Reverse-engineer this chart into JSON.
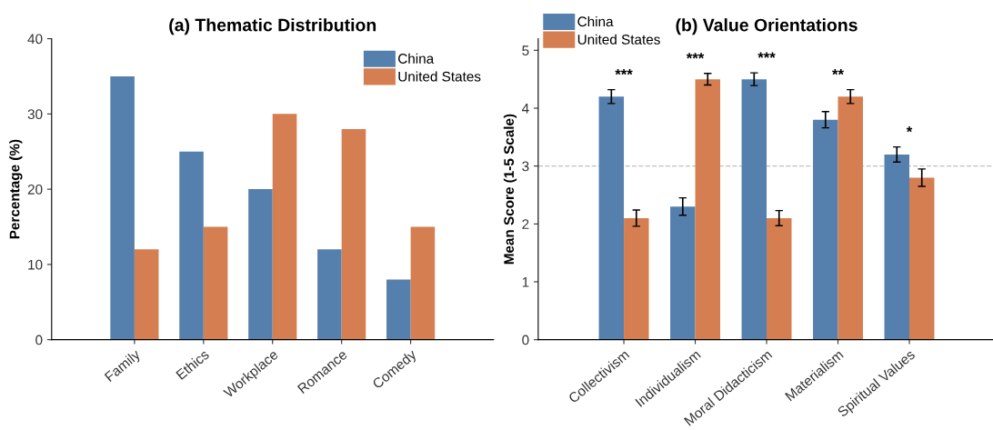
{
  "chart_data": [
    {
      "type": "bar",
      "title": "(a) Thematic Distribution",
      "ylabel": "Percentage (%)",
      "categories": [
        "Family",
        "Ethics",
        "Workplace",
        "Romance",
        "Comedy"
      ],
      "series": [
        {
          "name": "China",
          "color": "#5580ad",
          "values": [
            35,
            25,
            20,
            12,
            8
          ]
        },
        {
          "name": "United States",
          "color": "#d47e51",
          "values": [
            12,
            15,
            30,
            28,
            15
          ]
        }
      ],
      "ylim": [
        0,
        40
      ],
      "yticks": [
        0,
        10,
        20,
        30,
        40
      ],
      "grid": false,
      "legend": "top right"
    },
    {
      "type": "bar",
      "title": "(b) Value Orientations",
      "ylabel": "Mean Score (1-5 Scale)",
      "categories": [
        "Collectivism",
        "Individualism",
        "Moral Didacticism",
        "Materialism",
        "Spiritual Values"
      ],
      "series": [
        {
          "name": "China",
          "color": "#5580ad",
          "values": [
            4.2,
            2.3,
            4.5,
            3.8,
            3.2
          ],
          "errors": [
            0.12,
            0.15,
            0.11,
            0.14,
            0.13
          ]
        },
        {
          "name": "United States",
          "color": "#d47e51",
          "values": [
            2.1,
            4.5,
            2.1,
            4.2,
            2.8
          ],
          "errors": [
            0.14,
            0.1,
            0.13,
            0.12,
            0.15
          ]
        }
      ],
      "ylim": [
        0,
        5.2
      ],
      "yticks": [
        0,
        1,
        2,
        3,
        4,
        5
      ],
      "grid": false,
      "legend": "top left",
      "ref_lines": [
        {
          "axis": "y",
          "value": 3,
          "color": "#c0c0c0",
          "line_style": "dashed"
        }
      ],
      "annotations": [
        "***",
        "***",
        "***",
        "**",
        "*"
      ]
    }
  ]
}
